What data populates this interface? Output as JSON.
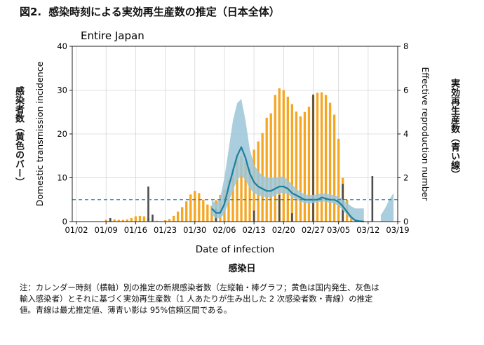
{
  "figure": {
    "number": "図2.",
    "title": "感染時刻による実効再生産数の推定（日本全体）"
  },
  "xlabel_jp": "感染日",
  "ylabel_left_jp": "感染者数（黄色のバー）",
  "ylabel_right_jp": "実効再生産数（青い線）",
  "note_lines": [
    "注：カレンダー時刻（横軸）別の推定の新規感染者数（左縦軸・棒グラフ；黄色は国内発生、灰色は",
    "輸入感染者）とそれに基づく実効再生産数（1 人あたりが生み出した 2 次感染者数・青線）の推定",
    "値。青線は最尤推定値、薄青い影は 95%信頼区間である。"
  ],
  "colors": {
    "domestic": "#F5A623",
    "imported": "#4D4D4D",
    "rt_line": "#1B7F9C",
    "ci_band": "#9CC6D8",
    "threshold": "#2A8FB0"
  },
  "chart_data": {
    "type": "bar",
    "title": "Entire Japan",
    "xlabel": "Date of infection",
    "ylabel": "Domestic transmission incidence",
    "ylabel_right": "Effective reproduction number",
    "xlim_day": [
      1,
      78
    ],
    "ylim": [
      0,
      40
    ],
    "ylim_right": [
      0,
      8
    ],
    "yticks": [
      0,
      10,
      20,
      30,
      40
    ],
    "yticks_right": [
      0,
      2,
      4,
      6,
      8
    ],
    "xticks": [
      {
        "label": "01/02",
        "day": 2
      },
      {
        "label": "01/09",
        "day": 9
      },
      {
        "label": "01/16",
        "day": 16
      },
      {
        "label": "01/23",
        "day": 23
      },
      {
        "label": "01/30",
        "day": 30
      },
      {
        "label": "02/06",
        "day": 37
      },
      {
        "label": "02/13",
        "day": 44
      },
      {
        "label": "02/20",
        "day": 51
      },
      {
        "label": "02/27",
        "day": 58
      },
      {
        "label": "03/05",
        "day": 64
      },
      {
        "label": "03/12",
        "day": 71
      },
      {
        "label": "03/19",
        "day": 78
      }
    ],
    "threshold_rt": 1,
    "grid": true,
    "series": [
      {
        "kind": "bar",
        "days": [
          9,
          10,
          11,
          12,
          13,
          14,
          15,
          16,
          17,
          18,
          19,
          20,
          21,
          22,
          23,
          24,
          25,
          26,
          27,
          28,
          29,
          30,
          31,
          32,
          33,
          34,
          35,
          36,
          37,
          38,
          39,
          40,
          41,
          42,
          43,
          44,
          45,
          46,
          47,
          48,
          49,
          50,
          51,
          52,
          53,
          54,
          55,
          56,
          57,
          58,
          59,
          60,
          61,
          62,
          63,
          64,
          65,
          66,
          67,
          68,
          69,
          70
        ],
        "values": [
          0.4,
          0.4,
          0.5,
          0.4,
          0.4,
          0.5,
          0.8,
          1.2,
          1.3,
          1.2,
          0.8,
          0.4,
          0.2,
          0.1,
          0.3,
          0.6,
          1.3,
          2.3,
          3.3,
          4.6,
          6.2,
          7.0,
          6.5,
          5.0,
          3.9,
          3.6,
          4.9,
          6.1,
          7.3,
          9.6,
          12.4,
          14.8,
          14.9,
          13.3,
          12.4,
          16.4,
          18.3,
          20.2,
          23.7,
          24.7,
          28.9,
          30.4,
          30.0,
          28.5,
          26.8,
          25.1,
          24.0,
          25.0,
          26.2,
          28.7,
          29.4,
          29.5,
          28.9,
          27.1,
          24.4,
          18.9,
          10.0,
          5.0,
          1.4,
          0.5,
          0.2,
          0.1
        ]
      },
      {
        "kind": "bar",
        "days": [
          10,
          19,
          20,
          35,
          44,
          50,
          53,
          58,
          65,
          72
        ],
        "values": [
          0.8,
          8.0,
          1.6,
          2.9,
          2.5,
          6.1,
          1.9,
          29.0,
          8.6,
          10.4
        ]
      },
      {
        "kind": "line",
        "x": [
          34,
          35,
          36,
          37,
          38,
          39,
          40,
          41,
          42,
          43,
          44,
          45,
          46,
          47,
          48,
          49,
          50,
          51,
          52,
          53,
          54,
          55,
          56,
          57,
          58,
          59,
          60,
          61,
          62,
          63,
          64,
          65,
          66,
          67,
          68,
          69,
          70
        ],
        "y": [
          0.6,
          0.4,
          0.4,
          0.8,
          1.6,
          2.3,
          3.0,
          3.4,
          2.9,
          2.2,
          1.8,
          1.6,
          1.5,
          1.4,
          1.4,
          1.5,
          1.6,
          1.6,
          1.5,
          1.3,
          1.2,
          1.1,
          1.0,
          1.0,
          1.0,
          1.0,
          1.1,
          1.05,
          1.0,
          1.0,
          0.9,
          0.7,
          0.45,
          0.2,
          0.05,
          0.02,
          0.0
        ],
        "ci_low": [
          0.3,
          0.15,
          0.15,
          0.35,
          0.9,
          1.4,
          1.9,
          2.1,
          1.9,
          1.5,
          1.3,
          1.2,
          1.15,
          1.1,
          1.1,
          1.2,
          1.3,
          1.3,
          1.25,
          1.1,
          1.0,
          0.92,
          0.85,
          0.82,
          0.85,
          0.88,
          0.92,
          0.9,
          0.85,
          0.82,
          0.72,
          0.52,
          0.3,
          0.1,
          0.0,
          0.0,
          0.0
        ],
        "ci_high": [
          1.0,
          0.8,
          1.1,
          2.0,
          3.3,
          4.6,
          5.4,
          5.6,
          4.6,
          3.3,
          2.6,
          2.3,
          2.1,
          2.0,
          2.0,
          2.0,
          2.05,
          2.05,
          1.9,
          1.7,
          1.5,
          1.35,
          1.25,
          1.2,
          1.22,
          1.24,
          1.3,
          1.28,
          1.24,
          1.2,
          1.15,
          1.0,
          0.85,
          0.7,
          0.6,
          0.6,
          0.6
        ],
        "ci_tail_x": [
          74,
          75,
          76,
          77
        ],
        "ci_tail_high": [
          0.3,
          0.6,
          1.0,
          1.3
        ]
      }
    ]
  }
}
